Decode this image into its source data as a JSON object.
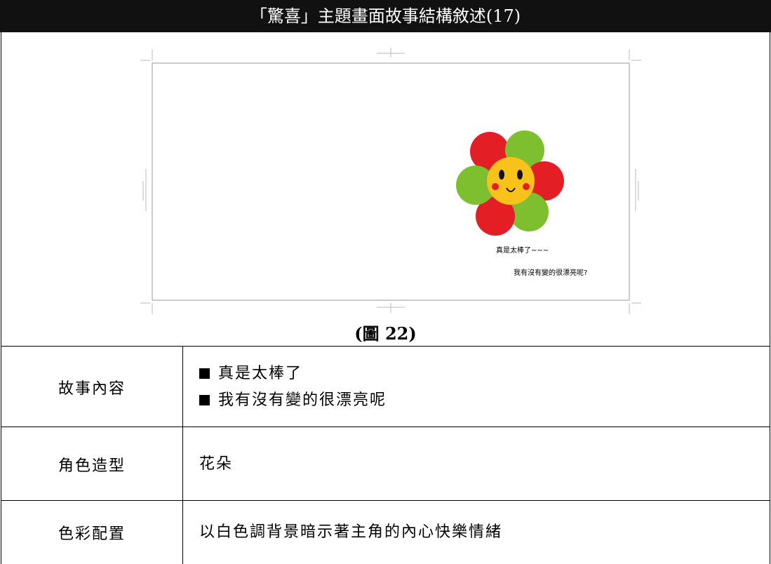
{
  "header": {
    "title": "「驚喜」主題畫面故事結構敘述(17)"
  },
  "figure": {
    "texts": [
      "真是太棒了~~~",
      "我有沒有變的很漂亮呢?"
    ],
    "caption": "(圖 22)"
  },
  "table": {
    "rows": [
      {
        "label": "故事內容",
        "items": [
          "真是太棒了",
          "我有沒有變的很漂亮呢"
        ]
      },
      {
        "label": "角色造型",
        "items": [
          "花朵"
        ]
      },
      {
        "label": "色彩配置",
        "items": [
          "以白色調背景暗示著主角的內心快樂情緒"
        ]
      }
    ]
  }
}
